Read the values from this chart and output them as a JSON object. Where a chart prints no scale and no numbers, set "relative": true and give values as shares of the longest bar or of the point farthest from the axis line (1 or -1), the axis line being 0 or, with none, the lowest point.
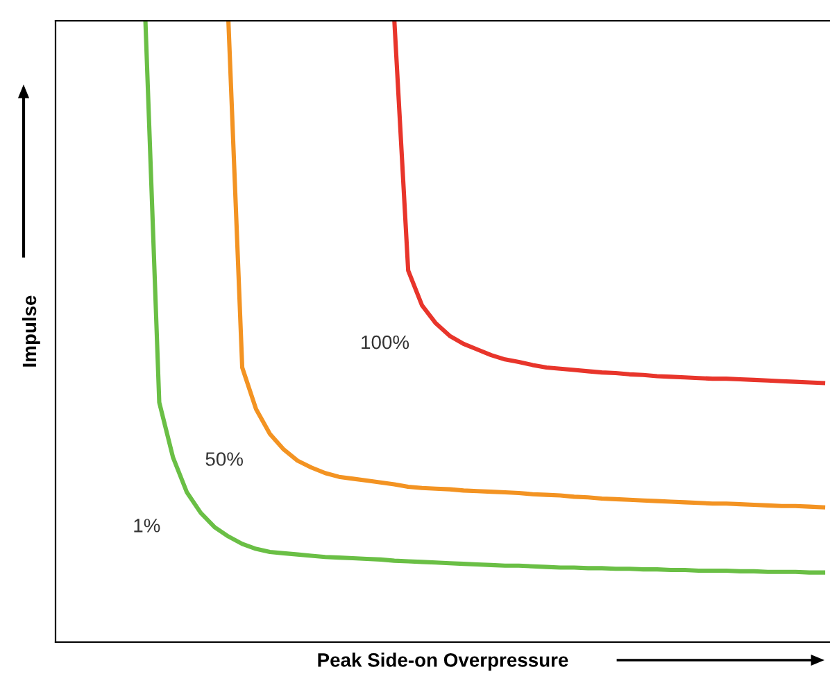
{
  "chart_data": {
    "type": "line",
    "relative": true,
    "xlabel": "Peak Side-on Overpressure",
    "ylabel": "Impulse",
    "grid": false,
    "legend": false,
    "marker": "none",
    "line_style": "solid",
    "categories": [
      null,
      null,
      null,
      null,
      null,
      null,
      null,
      null,
      null,
      null,
      null,
      null,
      null,
      null,
      null,
      null,
      null,
      null,
      null,
      null,
      null,
      null,
      null,
      null,
      null,
      null,
      null,
      null,
      null,
      null,
      null,
      null,
      null,
      null,
      null,
      null,
      null,
      null,
      null,
      null,
      null,
      null,
      null,
      null,
      null,
      null,
      null,
      null,
      null,
      null,
      null,
      null,
      null,
      null,
      null,
      null
    ],
    "series": [
      {
        "name": "1%",
        "color": "#6abf45",
        "values": [
          null,
          null,
          null,
          null,
          null,
          null,
          1.0,
          0.386,
          0.297,
          0.241,
          0.208,
          0.185,
          0.17,
          0.158,
          0.15,
          0.145,
          0.143,
          0.141,
          0.139,
          0.137,
          0.136,
          0.135,
          0.134,
          0.133,
          0.131,
          0.13,
          0.129,
          0.128,
          0.127,
          0.126,
          0.125,
          0.124,
          0.123,
          0.123,
          0.122,
          0.121,
          0.12,
          0.12,
          0.119,
          0.119,
          0.118,
          0.118,
          0.117,
          0.117,
          0.116,
          0.116,
          0.115,
          0.115,
          0.115,
          0.114,
          0.114,
          0.113,
          0.113,
          0.113,
          0.112,
          0.112
        ]
      },
      {
        "name": "50%",
        "color": "#f39322",
        "values": [
          null,
          null,
          null,
          null,
          null,
          null,
          null,
          null,
          null,
          null,
          null,
          null,
          1.0,
          0.442,
          0.375,
          0.335,
          0.31,
          0.292,
          0.281,
          0.272,
          0.266,
          0.263,
          0.26,
          0.257,
          0.254,
          0.25,
          0.248,
          0.247,
          0.246,
          0.244,
          0.243,
          0.242,
          0.241,
          0.24,
          0.238,
          0.237,
          0.236,
          0.234,
          0.233,
          0.231,
          0.23,
          0.229,
          0.228,
          0.227,
          0.226,
          0.225,
          0.224,
          0.223,
          0.223,
          0.222,
          0.221,
          0.22,
          0.219,
          0.219,
          0.218,
          0.217
        ]
      },
      {
        "name": "100%",
        "color": "#e8352b",
        "values": [
          null,
          null,
          null,
          null,
          null,
          null,
          null,
          null,
          null,
          null,
          null,
          null,
          null,
          null,
          null,
          null,
          null,
          null,
          null,
          null,
          null,
          null,
          null,
          null,
          1.0,
          0.598,
          0.542,
          0.513,
          0.493,
          0.48,
          0.471,
          0.462,
          0.455,
          0.451,
          0.446,
          0.442,
          0.44,
          0.438,
          0.436,
          0.434,
          0.433,
          0.431,
          0.43,
          0.428,
          0.427,
          0.426,
          0.425,
          0.424,
          0.424,
          0.423,
          0.422,
          0.421,
          0.42,
          0.419,
          0.418,
          0.417
        ]
      }
    ]
  }
}
